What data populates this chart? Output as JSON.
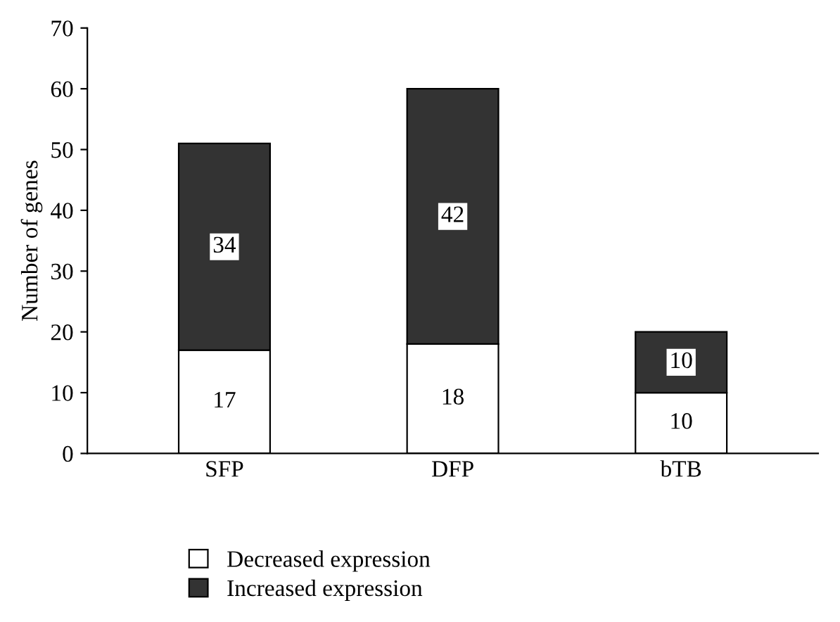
{
  "chart_data": {
    "type": "bar",
    "stacked": true,
    "ylabel": "Number of genes",
    "categories": [
      "SFP",
      "DFP",
      "bTB"
    ],
    "series": [
      {
        "name": "Decreased expression",
        "color": "#ffffff",
        "values": [
          17,
          18,
          10
        ]
      },
      {
        "name": "Increased expression",
        "color": "#333333",
        "values": [
          34,
          42,
          10
        ]
      }
    ],
    "ylim": [
      0,
      70
    ],
    "yticks": [
      0,
      10,
      20,
      30,
      40,
      50,
      60,
      70
    ],
    "data_labels": true,
    "legend": "bottom",
    "grid": false
  }
}
